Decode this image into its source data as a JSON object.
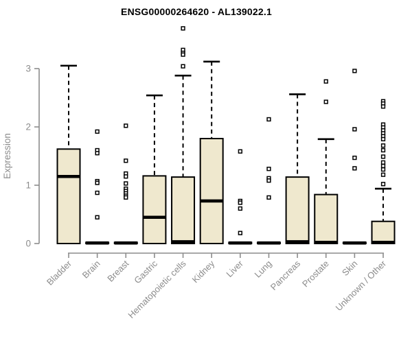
{
  "title": "ENSG00000264620 - AL139022.1",
  "chart_data": {
    "type": "boxplot",
    "title": "ENSG00000264620 - AL139022.1",
    "xlabel": "",
    "ylabel": "Expression",
    "yticks": [
      0,
      1,
      2,
      3
    ],
    "ylim": [
      0,
      3.8
    ],
    "grid": false,
    "legend": "none",
    "categories": [
      "Bladder",
      "Brain",
      "Breast",
      "Gastric",
      "Hematopoietic cells",
      "Kidney",
      "Liver",
      "Lung",
      "Pancreas",
      "Prostate",
      "Skin",
      "Unknown / Other"
    ],
    "series": [
      {
        "name": "Bladder",
        "q1": 0,
        "median": 1.15,
        "q3": 1.62,
        "whisker_low": 0,
        "whisker_high": 3.05,
        "outliers": []
      },
      {
        "name": "Brain",
        "q1": 0,
        "median": 0.01,
        "q3": 0.02,
        "whisker_low": 0,
        "whisker_high": 0.02,
        "outliers": [
          1.92,
          1.6,
          1.55,
          1.07,
          1.04,
          0.87,
          0.45
        ]
      },
      {
        "name": "Breast",
        "q1": 0,
        "median": 0.01,
        "q3": 0.02,
        "whisker_low": 0,
        "whisker_high": 0.02,
        "outliers": [
          2.02,
          1.42,
          1.2,
          1.15,
          1.03,
          0.94,
          0.9,
          0.86,
          0.82,
          0.79
        ]
      },
      {
        "name": "Gastric",
        "q1": 0,
        "median": 0.45,
        "q3": 1.16,
        "whisker_low": 0,
        "whisker_high": 2.54,
        "outliers": []
      },
      {
        "name": "Hematopoietic cells",
        "q1": 0,
        "median": 0.03,
        "q3": 1.14,
        "whisker_low": 0,
        "whisker_high": 2.88,
        "outliers": [
          3.69,
          3.32,
          3.27,
          3.24,
          3.04
        ]
      },
      {
        "name": "Kidney",
        "q1": 0,
        "median": 0.73,
        "q3": 1.8,
        "whisker_low": 0,
        "whisker_high": 3.12,
        "outliers": []
      },
      {
        "name": "Liver",
        "q1": 0,
        "median": 0.01,
        "q3": 0.02,
        "whisker_low": 0,
        "whisker_high": 0.02,
        "outliers": [
          1.58,
          0.73,
          0.7,
          0.6,
          0.18
        ]
      },
      {
        "name": "Lung",
        "q1": 0,
        "median": 0.01,
        "q3": 0.02,
        "whisker_low": 0,
        "whisker_high": 0.02,
        "outliers": [
          2.13,
          1.28,
          1.12,
          1.08,
          0.79
        ]
      },
      {
        "name": "Pancreas",
        "q1": 0,
        "median": 0.03,
        "q3": 1.14,
        "whisker_low": 0,
        "whisker_high": 2.56,
        "outliers": []
      },
      {
        "name": "Prostate",
        "q1": 0,
        "median": 0.02,
        "q3": 0.84,
        "whisker_low": 0,
        "whisker_high": 1.79,
        "outliers": [
          2.78,
          2.43
        ]
      },
      {
        "name": "Skin",
        "q1": 0,
        "median": 0.01,
        "q3": 0.02,
        "whisker_low": 0,
        "whisker_high": 0.02,
        "outliers": [
          2.96,
          1.96,
          1.47,
          1.29
        ]
      },
      {
        "name": "Unknown / Other",
        "q1": 0,
        "median": 0.02,
        "q3": 0.38,
        "whisker_low": 0,
        "whisker_high": 0.94,
        "outliers": [
          2.44,
          2.4,
          2.35,
          2.04,
          1.99,
          1.94,
          1.89,
          1.84,
          1.79,
          1.68,
          1.6,
          1.49,
          1.39,
          1.33,
          1.27,
          1.18,
          1.02
        ]
      }
    ],
    "colors": {
      "box_fill": "#EFE8CE",
      "box_stroke": "#000000",
      "median_color": "#000000",
      "whisker_color": "#000000",
      "outlier_color": "#000000",
      "axis_color": "#8C8C8C",
      "tick_label_color": "#8C8C8C",
      "title_color": "#000000"
    }
  }
}
